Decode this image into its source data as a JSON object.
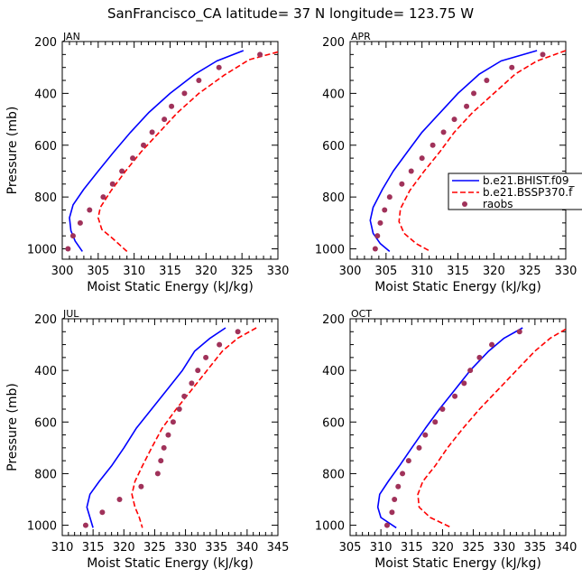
{
  "title": "SanFrancisco_CA  latitude= 37 N longitude= 123.75 W",
  "colors": {
    "hist": "#0000ff",
    "ssp": "#ff0000",
    "raobs": "#a0325a"
  },
  "legend": {
    "placement": "right-middle of APR panel (clipped at image edge)",
    "entries": [
      {
        "label": "b.e21.BHIST.f09_",
        "style": "solid",
        "color": "#0000ff"
      },
      {
        "label": "b.e21.BSSP370.f",
        "style": "dashed",
        "color": "#ff0000"
      },
      {
        "label": "raobs",
        "style": "dots",
        "color": "#a0325a"
      }
    ]
  },
  "chart_data": [
    {
      "type": "line",
      "panel_label": "JAN",
      "xlabel": "Moist Static Energy (kJ/kg)",
      "ylabel": "Pressure (mb)",
      "xlim": [
        300,
        330
      ],
      "ylim": [
        1040,
        200
      ],
      "xticks": [
        300,
        305,
        310,
        315,
        320,
        325,
        330
      ],
      "yticks": [
        200,
        400,
        600,
        800,
        1000
      ],
      "series": [
        {
          "name": "b.e21.BHIST.f09_",
          "style": "solid",
          "color": "#0000ff",
          "points": [
            [
              325.2,
              235
            ],
            [
              321.5,
              275
            ],
            [
              318.5,
              325
            ],
            [
              315.0,
              400
            ],
            [
              312.0,
              475
            ],
            [
              309.5,
              550
            ],
            [
              307.2,
              625
            ],
            [
              305.0,
              700
            ],
            [
              303.0,
              770
            ],
            [
              301.5,
              830
            ],
            [
              301.0,
              880
            ],
            [
              301.2,
              930
            ],
            [
              301.8,
              970
            ],
            [
              302.8,
              1010
            ]
          ]
        },
        {
          "name": "b.e21.BSSP370.f",
          "style": "dashed",
          "color": "#ff0000",
          "points": [
            [
              330.0,
              240
            ],
            [
              326.0,
              270
            ],
            [
              322.5,
              330
            ],
            [
              319.0,
              400
            ],
            [
              316.0,
              475
            ],
            [
              313.5,
              550
            ],
            [
              311.0,
              625
            ],
            [
              308.8,
              700
            ],
            [
              306.8,
              775
            ],
            [
              305.3,
              840
            ],
            [
              305.0,
              880
            ],
            [
              305.5,
              925
            ],
            [
              307.0,
              960
            ],
            [
              309.0,
              1010
            ]
          ]
        },
        {
          "name": "raobs",
          "style": "dots",
          "color": "#a0325a",
          "points": [
            [
              327.5,
              250
            ],
            [
              321.8,
              300
            ],
            [
              319.0,
              350
            ],
            [
              317.0,
              400
            ],
            [
              315.2,
              450
            ],
            [
              314.2,
              500
            ],
            [
              312.5,
              550
            ],
            [
              311.3,
              600
            ],
            [
              309.8,
              650
            ],
            [
              308.3,
              700
            ],
            [
              307.0,
              750
            ],
            [
              305.7,
              800
            ],
            [
              303.8,
              850
            ],
            [
              302.5,
              900
            ],
            [
              301.5,
              950
            ],
            [
              300.8,
              1000
            ]
          ]
        }
      ]
    },
    {
      "type": "line",
      "panel_label": "APR",
      "xlabel": "Moist Static Energy (kJ/kg)",
      "ylabel": "",
      "xlim": [
        300,
        330
      ],
      "ylim": [
        1040,
        200
      ],
      "xticks": [
        300,
        305,
        310,
        315,
        320,
        325,
        330
      ],
      "yticks": [
        200,
        400,
        600,
        800,
        1000
      ],
      "series": [
        {
          "name": "b.e21.BHIST.f09_",
          "style": "solid",
          "color": "#0000ff",
          "points": [
            [
              326.0,
              235
            ],
            [
              321.0,
              275
            ],
            [
              318.0,
              325
            ],
            [
              315.0,
              400
            ],
            [
              312.5,
              475
            ],
            [
              310.0,
              550
            ],
            [
              308.0,
              625
            ],
            [
              306.0,
              700
            ],
            [
              304.5,
              770
            ],
            [
              303.2,
              840
            ],
            [
              302.8,
              890
            ],
            [
              303.2,
              940
            ],
            [
              304.2,
              980
            ],
            [
              305.5,
              1010
            ]
          ]
        },
        {
          "name": "b.e21.BSSP370.f",
          "style": "dashed",
          "color": "#ff0000",
          "points": [
            [
              330.0,
              235
            ],
            [
              326.0,
              275
            ],
            [
              323.0,
              325
            ],
            [
              320.0,
              400
            ],
            [
              317.0,
              475
            ],
            [
              314.5,
              550
            ],
            [
              312.5,
              625
            ],
            [
              310.3,
              700
            ],
            [
              308.3,
              775
            ],
            [
              307.0,
              845
            ],
            [
              306.8,
              895
            ],
            [
              307.5,
              940
            ],
            [
              309.2,
              980
            ],
            [
              311.2,
              1010
            ]
          ]
        },
        {
          "name": "raobs",
          "style": "dots",
          "color": "#a0325a",
          "points": [
            [
              326.8,
              250
            ],
            [
              322.5,
              300
            ],
            [
              319.0,
              350
            ],
            [
              317.2,
              400
            ],
            [
              316.2,
              450
            ],
            [
              314.5,
              500
            ],
            [
              313.0,
              550
            ],
            [
              311.5,
              600
            ],
            [
              310.0,
              650
            ],
            [
              308.5,
              700
            ],
            [
              307.2,
              750
            ],
            [
              305.5,
              800
            ],
            [
              304.8,
              850
            ],
            [
              304.2,
              900
            ],
            [
              303.8,
              950
            ],
            [
              303.5,
              1000
            ]
          ]
        }
      ]
    },
    {
      "type": "line",
      "panel_label": "JUL",
      "xlabel": "Moist Static Energy (kJ/kg)",
      "ylabel": "Pressure (mb)",
      "xlim": [
        310,
        345
      ],
      "ylim": [
        1040,
        200
      ],
      "xticks": [
        310,
        315,
        320,
        325,
        330,
        335,
        340,
        345
      ],
      "yticks": [
        200,
        400,
        600,
        800,
        1000
      ],
      "series": [
        {
          "name": "b.e21.BHIST.f09_",
          "style": "solid",
          "color": "#0000ff",
          "points": [
            [
              336.5,
              235
            ],
            [
              334.0,
              275
            ],
            [
              331.5,
              325
            ],
            [
              329.5,
              400
            ],
            [
              327.0,
              475
            ],
            [
              324.5,
              550
            ],
            [
              322.0,
              625
            ],
            [
              320.0,
              700
            ],
            [
              318.0,
              770
            ],
            [
              316.0,
              830
            ],
            [
              314.5,
              880
            ],
            [
              314.0,
              930
            ],
            [
              314.5,
              970
            ],
            [
              315.0,
              1010
            ]
          ]
        },
        {
          "name": "b.e21.BSSP370.f",
          "style": "dashed",
          "color": "#ff0000",
          "points": [
            [
              341.5,
              235
            ],
            [
              338.5,
              275
            ],
            [
              336.0,
              325
            ],
            [
              333.5,
              400
            ],
            [
              331.0,
              475
            ],
            [
              328.5,
              550
            ],
            [
              326.2,
              625
            ],
            [
              324.5,
              700
            ],
            [
              323.0,
              770
            ],
            [
              321.8,
              830
            ],
            [
              321.3,
              880
            ],
            [
              321.8,
              930
            ],
            [
              322.5,
              970
            ],
            [
              323.0,
              1010
            ]
          ]
        },
        {
          "name": "raobs",
          "style": "dots",
          "color": "#a0325a",
          "points": [
            [
              338.5,
              250
            ],
            [
              335.5,
              300
            ],
            [
              333.3,
              350
            ],
            [
              332.0,
              400
            ],
            [
              331.0,
              450
            ],
            [
              329.8,
              500
            ],
            [
              329.0,
              550
            ],
            [
              328.0,
              600
            ],
            [
              327.2,
              650
            ],
            [
              326.5,
              700
            ],
            [
              326.0,
              750
            ],
            [
              325.5,
              800
            ],
            [
              322.8,
              850
            ],
            [
              319.3,
              900
            ],
            [
              316.5,
              950
            ],
            [
              313.8,
              1000
            ]
          ]
        }
      ]
    },
    {
      "type": "line",
      "panel_label": "OCT",
      "xlabel": "Moist Static Energy (kJ/kg)",
      "ylabel": "",
      "xlim": [
        305,
        340
      ],
      "ylim": [
        1040,
        200
      ],
      "xticks": [
        305,
        310,
        315,
        320,
        325,
        330,
        335,
        340
      ],
      "yticks": [
        200,
        400,
        600,
        800,
        1000
      ],
      "series": [
        {
          "name": "b.e21.BHIST.f09_",
          "style": "solid",
          "color": "#0000ff",
          "points": [
            [
              333.0,
              235
            ],
            [
              330.0,
              275
            ],
            [
              327.5,
              325
            ],
            [
              324.5,
              400
            ],
            [
              322.0,
              475
            ],
            [
              319.5,
              550
            ],
            [
              317.2,
              625
            ],
            [
              315.0,
              700
            ],
            [
              313.0,
              770
            ],
            [
              311.2,
              830
            ],
            [
              309.8,
              880
            ],
            [
              309.5,
              930
            ],
            [
              310.0,
              970
            ],
            [
              312.5,
              1010
            ]
          ]
        },
        {
          "name": "b.e21.BSSP370.f",
          "style": "dashed",
          "color": "#ff0000",
          "points": [
            [
              340.0,
              240
            ],
            [
              337.5,
              275
            ],
            [
              335.0,
              325
            ],
            [
              332.0,
              400
            ],
            [
              329.0,
              475
            ],
            [
              326.0,
              550
            ],
            [
              323.3,
              625
            ],
            [
              320.8,
              700
            ],
            [
              318.8,
              770
            ],
            [
              316.8,
              830
            ],
            [
              316.0,
              880
            ],
            [
              316.2,
              930
            ],
            [
              318.0,
              970
            ],
            [
              321.5,
              1010
            ]
          ]
        },
        {
          "name": "raobs",
          "style": "dots",
          "color": "#a0325a",
          "points": [
            [
              332.5,
              250
            ],
            [
              328.0,
              300
            ],
            [
              326.0,
              350
            ],
            [
              324.5,
              400
            ],
            [
              323.5,
              450
            ],
            [
              322.0,
              500
            ],
            [
              320.0,
              550
            ],
            [
              318.8,
              600
            ],
            [
              317.2,
              650
            ],
            [
              316.2,
              700
            ],
            [
              314.5,
              750
            ],
            [
              313.5,
              800
            ],
            [
              312.8,
              850
            ],
            [
              312.2,
              900
            ],
            [
              311.8,
              950
            ],
            [
              311.0,
              1000
            ]
          ]
        }
      ]
    }
  ]
}
